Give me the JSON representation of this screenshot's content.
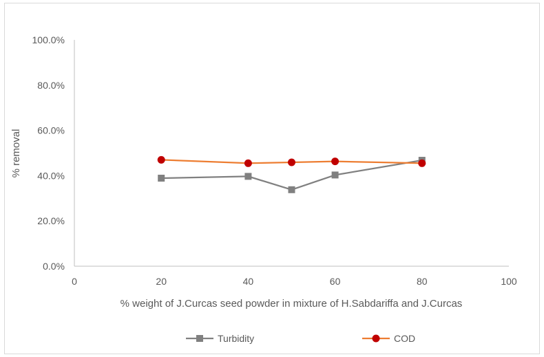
{
  "chart_data": {
    "type": "line",
    "title": "",
    "xlabel": "% weight of J.Curcas seed powder in mixture of H.Sabdariffa and J.Curcas",
    "ylabel": "% removal",
    "xlim": [
      0,
      100
    ],
    "ylim": [
      0,
      1
    ],
    "x_ticks": [
      "0",
      "20",
      "40",
      "60",
      "80",
      "100"
    ],
    "y_ticks": [
      "0.0%",
      "20.0%",
      "40.0%",
      "60.0%",
      "80.0%",
      "100.0%"
    ],
    "grid": false,
    "legend_position": "bottom",
    "series": [
      {
        "name": "Turbidity",
        "color": "#808080",
        "marker": "square",
        "x": [
          20,
          40,
          50,
          60,
          80
        ],
        "values": [
          0.389,
          0.397,
          0.338,
          0.403,
          0.468
        ]
      },
      {
        "name": "COD",
        "color": "#ed7d31",
        "marker_color": "#c00000",
        "marker": "circle",
        "x": [
          20,
          40,
          50,
          60,
          80
        ],
        "values": [
          0.47,
          0.455,
          0.459,
          0.463,
          0.455
        ]
      }
    ]
  }
}
